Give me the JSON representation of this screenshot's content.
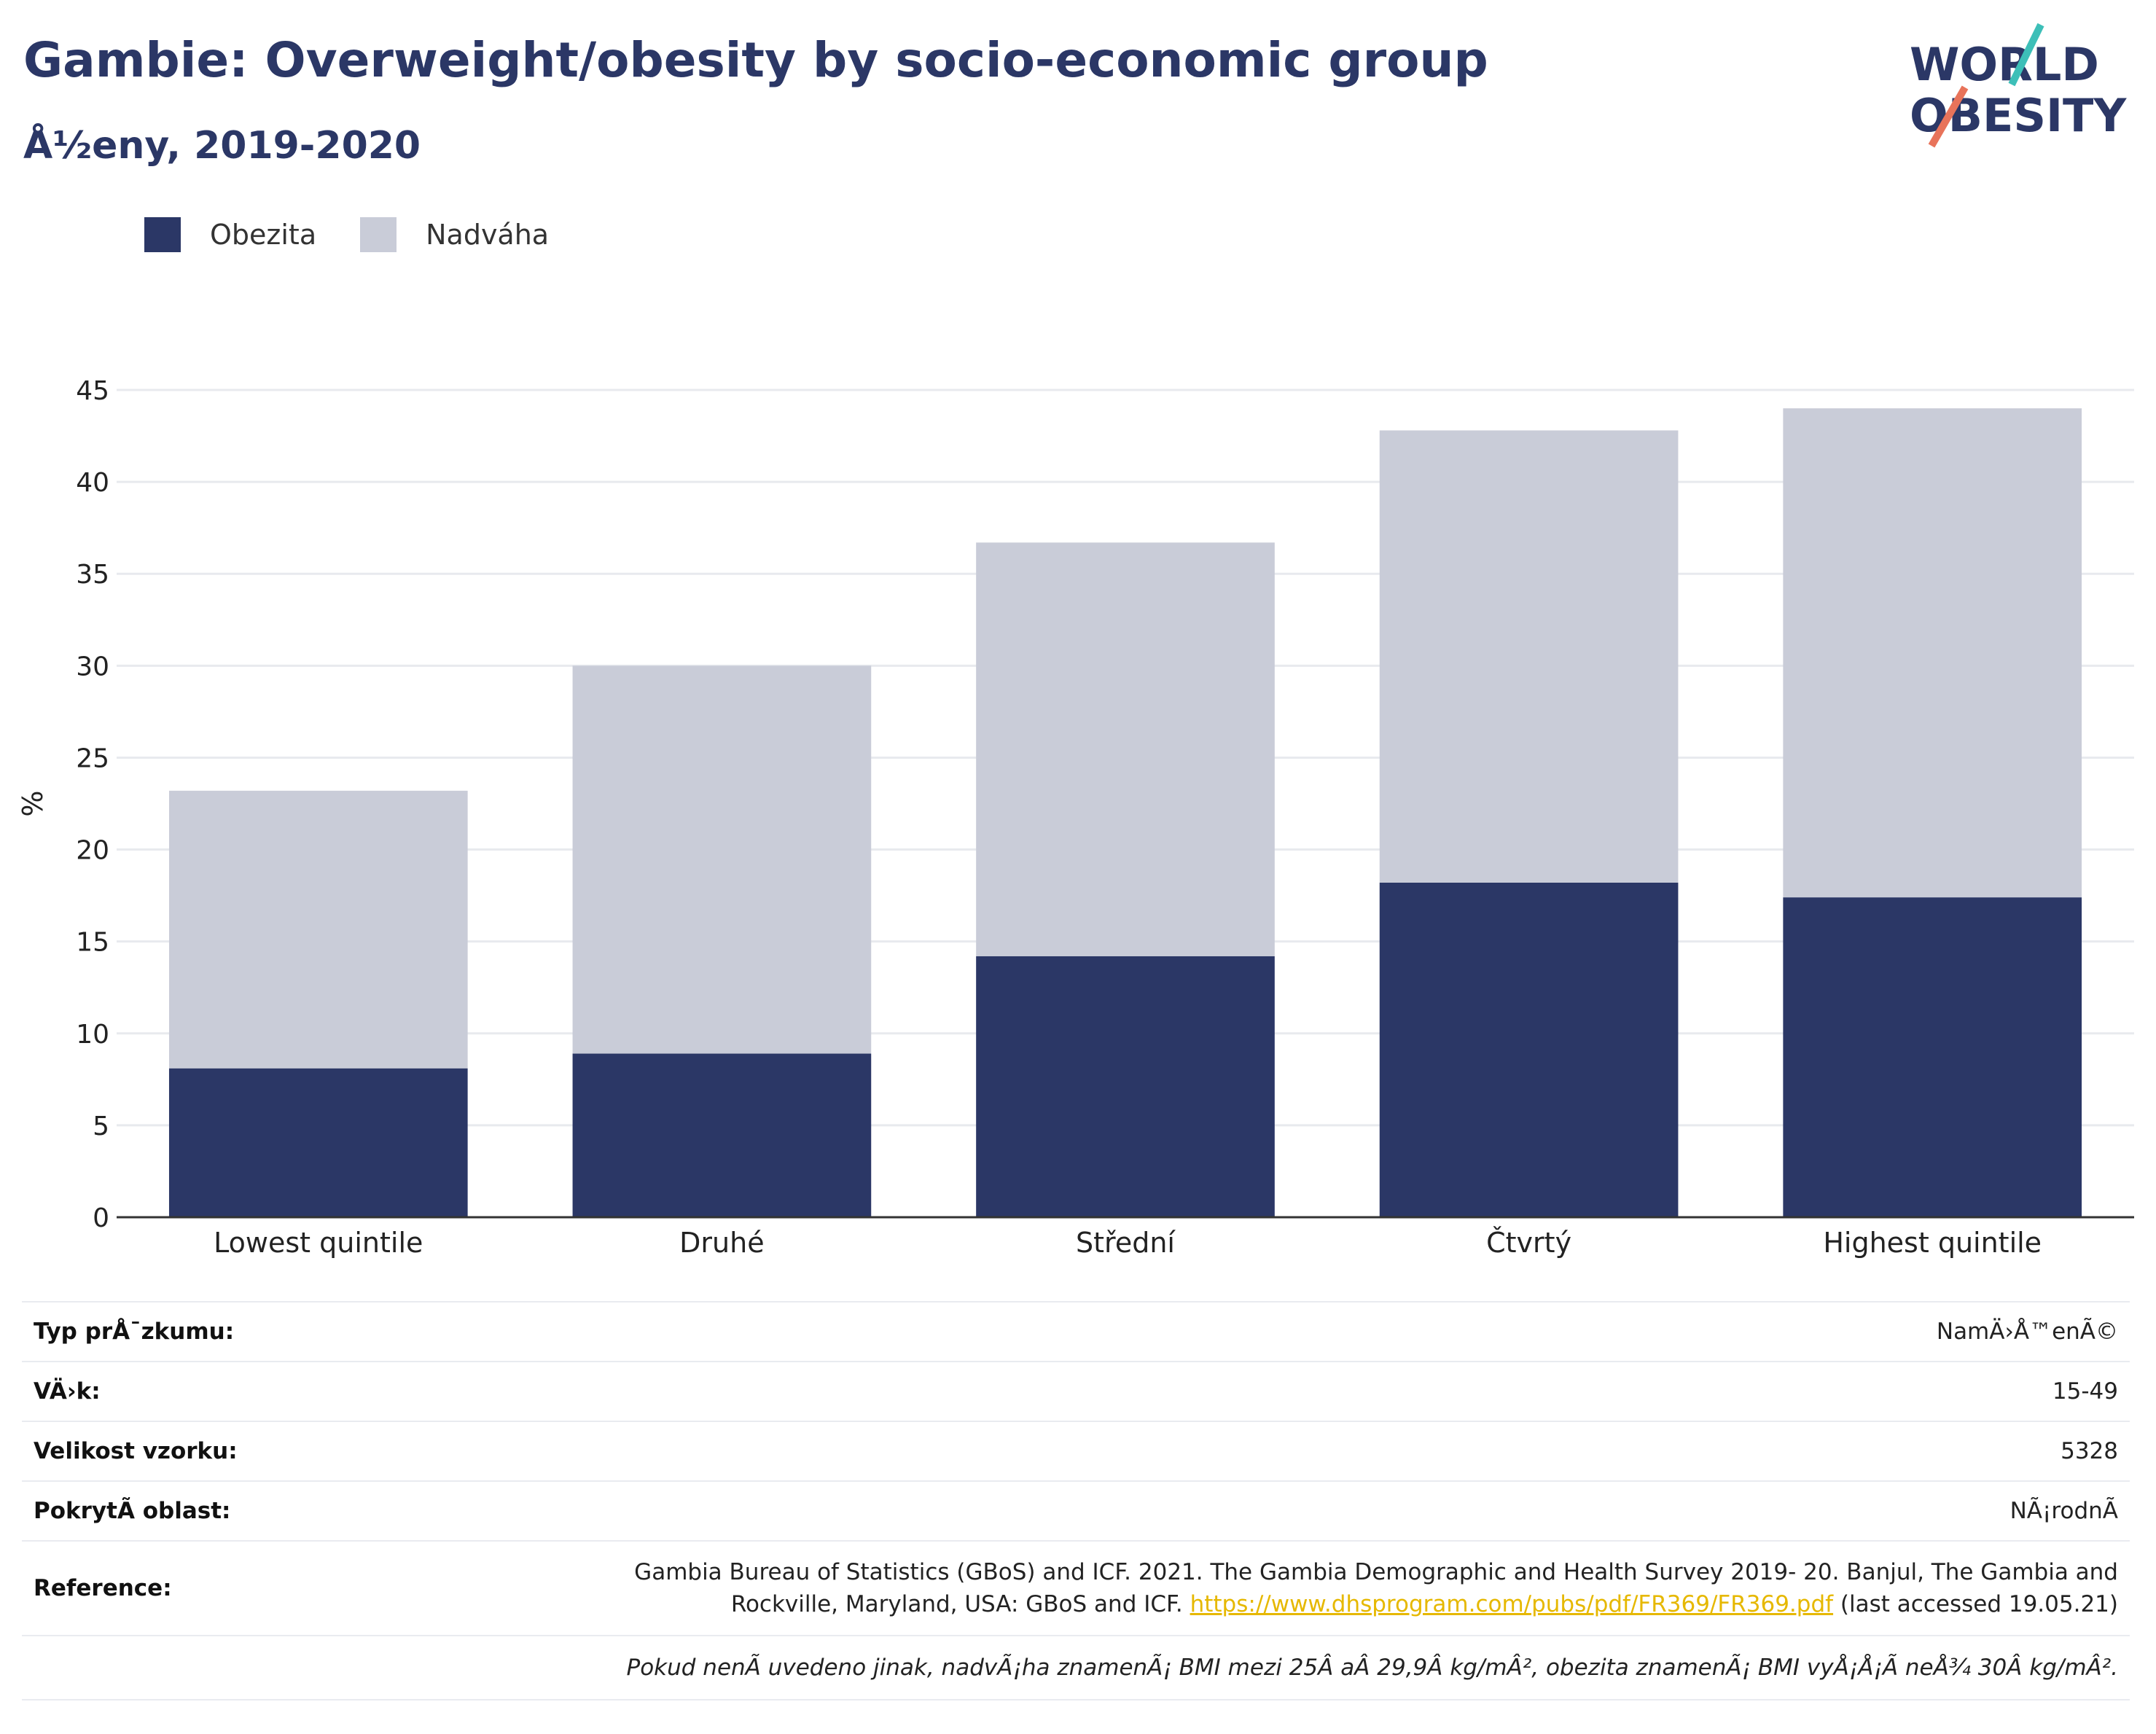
{
  "header": {
    "title": "Gambie: Overweight/obesity by socio-economic group",
    "subtitle": "Å½eny, 2019-2020"
  },
  "logo": {
    "line1": "WORLD",
    "line2": "OBESITY",
    "accent_teal": "#3dbfb8",
    "accent_red": "#e8735a",
    "text_color": "#2b3766"
  },
  "chart_data": {
    "type": "bar",
    "stacked": true,
    "categories": [
      "Lowest quintile",
      "Druhé",
      "Střední",
      "Čtvrtý",
      "Highest quintile"
    ],
    "series": [
      {
        "name": "Obezita",
        "color": "#2b3766",
        "values": [
          8.1,
          8.9,
          14.2,
          18.2,
          17.4
        ]
      },
      {
        "name": "Nadváha",
        "color": "#c9ccd8",
        "values": [
          15.1,
          21.1,
          22.5,
          24.6,
          26.6
        ]
      }
    ],
    "totals": [
      23.2,
      30.0,
      36.7,
      42.8,
      44.0
    ],
    "ylabel": "%",
    "ylim": [
      0,
      45
    ],
    "yticks": [
      0,
      5,
      10,
      15,
      20,
      25,
      30,
      35,
      40,
      45
    ],
    "grid": true,
    "legend_position": "top-left"
  },
  "info": {
    "rows": [
      {
        "key": "Typ prÅ¯zkumu:",
        "value": "NamÄ›Å™enÃ©"
      },
      {
        "key": "VÄ›k:",
        "value": "15-49"
      },
      {
        "key": "Velikost vzorku:",
        "value": "5328"
      },
      {
        "key": "PokrytÃ­ oblast:",
        "value": "NÃ¡rodnÃ­"
      }
    ],
    "reference": {
      "key": "Reference:",
      "line1": "Gambia Bureau of Statistics (GBoS) and ICF. 2021. The Gambia Demographic and Health Survey 2019- 20. Banjul, The Gambia and",
      "line2_pre": "Rockville, Maryland, USA: GBoS and ICF.",
      "link": "https://www.dhsprogram.com/pubs/pdf/FR369/FR369.pdf",
      "line2_post": "(last accessed 19.05.21)",
      "link_color": "#e6b800"
    },
    "note": "Pokud nenÃ­ uvedeno jinak, nadvÃ¡ha znamenÃ¡ BMI mezi 25Â aÂ 29,9Â kg/mÂ², obezita znamenÃ¡ BMI vyÅ¡Å¡Ã­ neÅ¾ 30Â kg/mÂ²."
  }
}
